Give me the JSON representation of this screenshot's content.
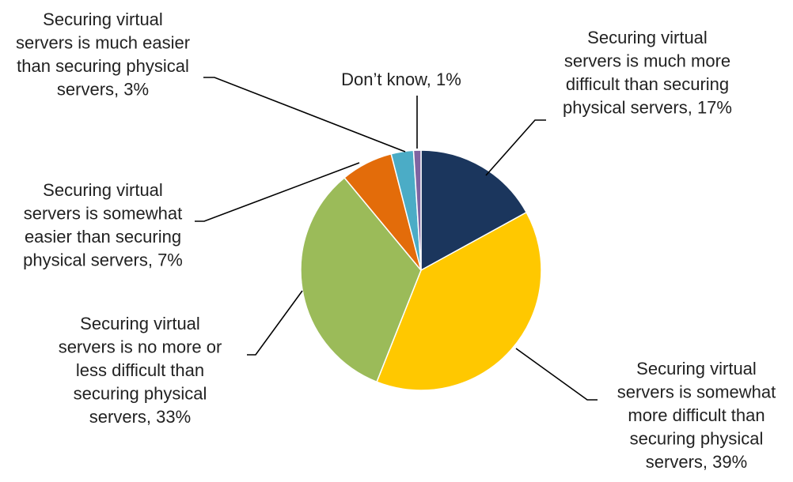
{
  "chart_data": {
    "type": "pie",
    "title": "",
    "start_angle_deg": 0,
    "direction": "clockwise",
    "slices": [
      {
        "name": "Securing virtual servers is much more difficult than securing physical servers",
        "value": 17,
        "color": "#1b365d",
        "label_lines": [
          "Securing virtual",
          "servers is much more",
          "difficult than securing",
          "physical servers, 17%"
        ]
      },
      {
        "name": "Securing virtual servers is somewhat more difficult than securing physical servers",
        "value": 39,
        "color": "#ffc800",
        "label_lines": [
          "Securing virtual",
          "servers is somewhat",
          "more difficult than",
          "securing physical",
          "servers, 39%"
        ]
      },
      {
        "name": "Securing virtual servers is no more or less difficult than securing physical servers",
        "value": 33,
        "color": "#9bbb59",
        "label_lines": [
          "Securing virtual",
          "servers is no more or",
          "less difficult than",
          "securing physical",
          "servers, 33%"
        ]
      },
      {
        "name": "Securing virtual servers is somewhat easier than securing physical servers",
        "value": 7,
        "color": "#e36c0a",
        "label_lines": [
          "Securing virtual",
          "servers is somewhat",
          "easier than securing",
          "physical servers, 7%"
        ]
      },
      {
        "name": "Securing virtual servers is much easier than securing physical servers",
        "value": 3,
        "color": "#4bacc6",
        "label_lines": [
          "Securing virtual",
          "servers is much easier",
          "than securing physical",
          "servers, 3%"
        ]
      },
      {
        "name": "Don’t know",
        "value": 1,
        "color": "#8064a2",
        "label_lines": [
          "Don’t know, 1%"
        ]
      }
    ]
  }
}
